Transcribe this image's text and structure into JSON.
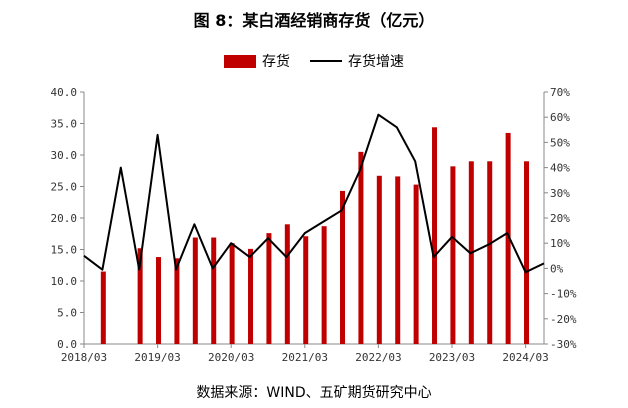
{
  "chart_data": {
    "type": "bar",
    "title": "图 8：某白酒经销商存货（亿元）",
    "categories": [
      "2018/03",
      "2018/06",
      "2018/09",
      "2018/12",
      "2019/03",
      "2019/06",
      "2019/09",
      "2019/12",
      "2020/03",
      "2020/06",
      "2020/09",
      "2020/12",
      "2021/03",
      "2021/06",
      "2021/09",
      "2021/12",
      "2022/03",
      "2022/06",
      "2022/09",
      "2022/12",
      "2023/03",
      "2023/06",
      "2023/09",
      "2023/12",
      "2024/03",
      "2024/06"
    ],
    "x_tick_labels": [
      "2018/03",
      "2019/03",
      "2020/03",
      "2021/03",
      "2022/03",
      "2023/03",
      "2024/03"
    ],
    "series": [
      {
        "name": "存货",
        "type": "bar",
        "axis": "left",
        "color": "#c00000",
        "values": [
          null,
          11.5,
          null,
          15.2,
          13.8,
          13.6,
          16.9,
          16.9,
          16.0,
          15.1,
          17.6,
          19.0,
          17.1,
          18.7,
          24.3,
          30.5,
          26.7,
          26.6,
          25.3,
          34.4,
          28.2,
          29.0,
          29.0,
          33.5,
          29.0,
          null
        ]
      },
      {
        "name": "存货增速",
        "type": "line",
        "axis": "right",
        "color": "#000000",
        "values": [
          5,
          -0.5,
          40,
          -0.5,
          53,
          -0.5,
          17.5,
          0,
          10,
          4.5,
          12,
          4.5,
          14,
          18.5,
          23,
          39,
          61,
          56,
          42.5,
          4.5,
          12.5,
          6,
          9.5,
          14,
          -1.5,
          2
        ]
      }
    ],
    "y_left": {
      "min": 0,
      "max": 40,
      "step": 5,
      "tick_labels": [
        "0.0",
        "5.0",
        "10.0",
        "15.0",
        "20.0",
        "25.0",
        "30.0",
        "35.0",
        "40.0"
      ]
    },
    "y_right": {
      "min": -30,
      "max": 70,
      "step": 10,
      "tick_labels": [
        "-30%",
        "-20%",
        "-10%",
        "0%",
        "10%",
        "20%",
        "30%",
        "40%",
        "50%",
        "60%",
        "70%"
      ]
    },
    "legend_position": "top",
    "grid": false
  },
  "footer": {
    "source": "数据来源：WIND、五矿期货研究中心"
  }
}
